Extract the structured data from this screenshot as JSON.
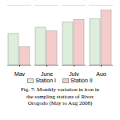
{
  "chart_data": {
    "type": "bar",
    "title": "Fig. 7: Monthly variation in iron in\nthe sampling stations of River\nOrogodo (May to Aug 2008)",
    "categories": [
      "May",
      "June",
      "July",
      "Aug"
    ],
    "series": [
      {
        "name": "Station I",
        "color": "#ddeedd",
        "values": [
          0.6,
          0.72,
          0.82,
          0.88
        ]
      },
      {
        "name": "Station II",
        "color": "#f5cccc",
        "values": [
          0.35,
          0.65,
          0.87,
          1.05
        ]
      }
    ],
    "ylim": [
      0,
      1.15
    ],
    "yticks": [],
    "tick_labels": "x",
    "grid": false,
    "legend": "bottom"
  }
}
